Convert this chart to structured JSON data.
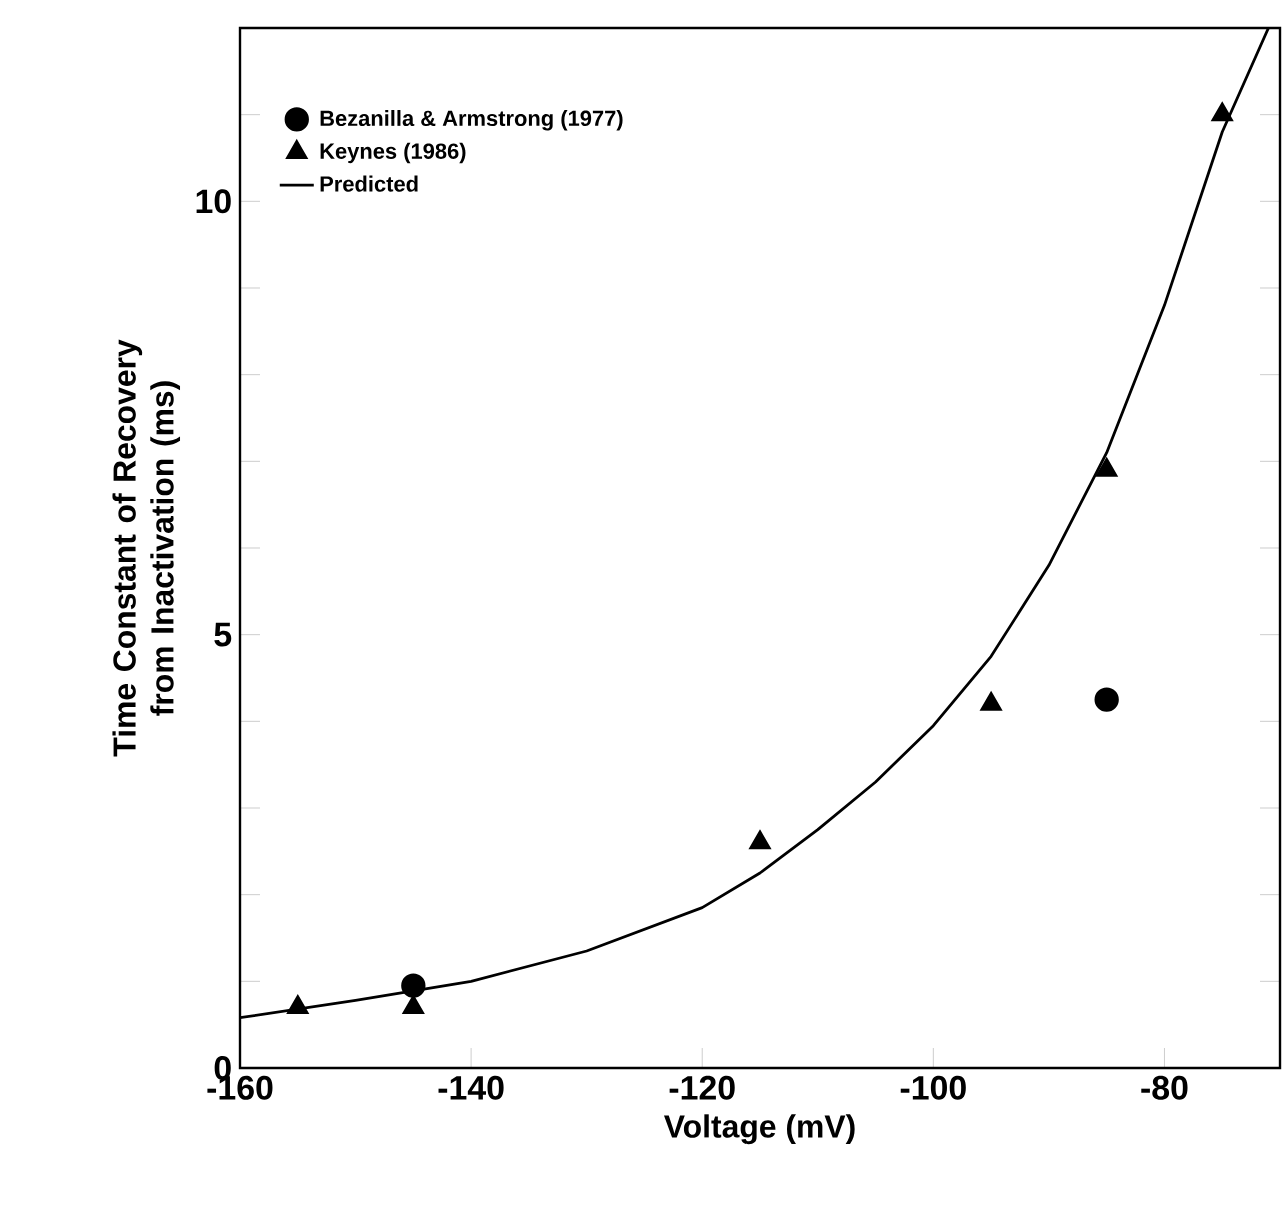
{
  "chart_data": {
    "type": "scatter",
    "xlabel": "Voltage (mV)",
    "ylabel": "Time Constant of Recovery from Inactivation (ms)",
    "xlim": [
      -160,
      -70
    ],
    "xticks": [
      -160,
      -140,
      -120,
      -100,
      -80
    ],
    "ylim": [
      0,
      12
    ],
    "yticks": [
      0,
      {
        "value": 1,
        "label": null
      },
      {
        "value": 2,
        "label": null
      },
      {
        "value": 3,
        "label": null
      },
      {
        "value": 4,
        "label": null
      },
      5,
      {
        "value": 6,
        "label": null
      },
      {
        "value": 7,
        "label": null
      },
      {
        "value": 8,
        "label": null
      },
      {
        "value": 9,
        "label": null
      },
      10,
      {
        "value": 11,
        "label": null
      },
      {
        "value": 12,
        "label": null
      }
    ],
    "grid": false,
    "legend": "top left",
    "series": [
      {
        "name": "Bezanilla & Armstrong (1977)",
        "marker": "circle",
        "color": "#000000",
        "x": [
          -145,
          -85
        ],
        "values": [
          0.95,
          4.25
        ]
      },
      {
        "name": "Keynes (1986)",
        "marker": "triangle",
        "color": "#000000",
        "x": [
          -155,
          -145,
          -115,
          -95,
          -85,
          -75
        ],
        "values": [
          0.7,
          0.7,
          2.6,
          4.2,
          6.9,
          11.0
        ]
      },
      {
        "name": "Predicted",
        "type": "line",
        "marker": "none",
        "line_style": "solid",
        "color": "#000000",
        "x": [
          -160,
          -150,
          -140,
          -130,
          -120,
          -115,
          -110,
          -105,
          -100,
          -95,
          -90,
          -85,
          -80,
          -75,
          -71
        ],
        "values": [
          0.58,
          0.78,
          1.0,
          1.35,
          1.85,
          2.25,
          2.75,
          3.3,
          3.95,
          4.75,
          5.8,
          7.1,
          8.8,
          10.8,
          12
        ]
      }
    ]
  }
}
